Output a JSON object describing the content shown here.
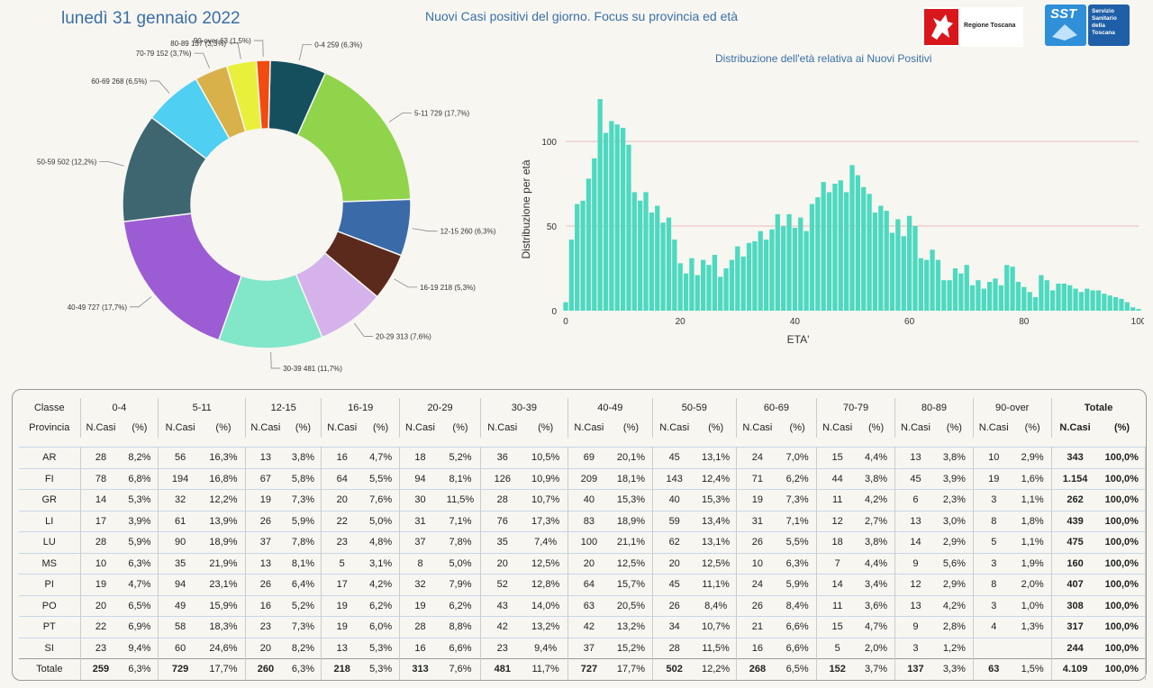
{
  "header": {
    "date": "lunedì 31 gennaio 2022",
    "title": "Nuovi Casi positivi del giorno. Focus su provincia ed età",
    "logo_toscana_label": "Regione Toscana",
    "logo_sst_label": "SST",
    "logo_sst_sub": "Servizio Sanitario della Toscana"
  },
  "chart_data": [
    {
      "type": "pie",
      "donut": true,
      "slices": [
        {
          "label": "0-4 259 (6,3%)",
          "value": 259,
          "color": "#154f5e"
        },
        {
          "label": "5-11 729 (17,7%)",
          "value": 729,
          "color": "#8fd44a"
        },
        {
          "label": "12-15 260 (6,3%)",
          "value": 260,
          "color": "#3a6aa8"
        },
        {
          "label": "16-19 218 (5,3%)",
          "value": 218,
          "color": "#5b2a1d"
        },
        {
          "label": "20-29 313 (7,6%)",
          "value": 313,
          "color": "#d5b3ea"
        },
        {
          "label": "30-39 481 (11,7%)",
          "value": 481,
          "color": "#82e6c9"
        },
        {
          "label": "40-49 727 (17,7%)",
          "value": 727,
          "color": "#9c5cd4"
        },
        {
          "label": "50-59 502 (12,2%)",
          "value": 502,
          "color": "#3e6670"
        },
        {
          "label": "60-69 268 (6,5%)",
          "value": 268,
          "color": "#4fcff2"
        },
        {
          "label": "70-79 152 (3,7%)",
          "value": 152,
          "color": "#d9b14a"
        },
        {
          "label": "80-89 137 (3,3%)",
          "value": 137,
          "color": "#e8f03c"
        },
        {
          "label": "90-over 63 (1,5%)",
          "value": 63,
          "color": "#f24b0f"
        }
      ]
    },
    {
      "type": "bar",
      "title": "Distribuzione dell'età relativa ai Nuovi Positivi",
      "xlabel": "ETA'",
      "ylabel": "Distribuzione per età",
      "xlim": [
        0,
        100
      ],
      "ylim": [
        0,
        125
      ],
      "yticks": [
        0,
        50,
        100
      ],
      "xticks": [
        0,
        20,
        40,
        60,
        80,
        100
      ],
      "color": "#4dd9c0",
      "x": [
        0,
        1,
        2,
        3,
        4,
        5,
        6,
        7,
        8,
        9,
        10,
        11,
        12,
        13,
        14,
        15,
        16,
        17,
        18,
        19,
        20,
        21,
        22,
        23,
        24,
        25,
        26,
        27,
        28,
        29,
        30,
        31,
        32,
        33,
        34,
        35,
        36,
        37,
        38,
        39,
        40,
        41,
        42,
        43,
        44,
        45,
        46,
        47,
        48,
        49,
        50,
        51,
        52,
        53,
        54,
        55,
        56,
        57,
        58,
        59,
        60,
        61,
        62,
        63,
        64,
        65,
        66,
        67,
        68,
        69,
        70,
        71,
        72,
        73,
        74,
        75,
        76,
        77,
        78,
        79,
        80,
        81,
        82,
        83,
        84,
        85,
        86,
        87,
        88,
        89,
        90,
        91,
        92,
        93,
        94,
        95,
        96,
        97,
        98,
        99,
        100
      ],
      "values": [
        5,
        42,
        63,
        65,
        78,
        90,
        125,
        105,
        112,
        110,
        108,
        98,
        70,
        65,
        70,
        58,
        62,
        52,
        55,
        42,
        28,
        22,
        31,
        21,
        30,
        27,
        33,
        20,
        25,
        30,
        38,
        32,
        40,
        41,
        47,
        42,
        48,
        57,
        50,
        57,
        49,
        55,
        47,
        63,
        67,
        76,
        70,
        75,
        77,
        70,
        86,
        80,
        73,
        69,
        58,
        62,
        59,
        46,
        54,
        44,
        56,
        50,
        31,
        30,
        36,
        30,
        18,
        18,
        25,
        22,
        27,
        15,
        18,
        13,
        17,
        19,
        15,
        27,
        26,
        17,
        14,
        11,
        8,
        21,
        18,
        12,
        16,
        16,
        15,
        13,
        11,
        13,
        12,
        12,
        10,
        9,
        8,
        7,
        5,
        2,
        1
      ]
    }
  ],
  "table": {
    "classe_label": "Classe",
    "provincia_label": "Provincia",
    "groups": [
      "0-4",
      "5-11",
      "12-15",
      "16-19",
      "20-29",
      "30-39",
      "40-49",
      "50-59",
      "60-69",
      "70-79",
      "80-89",
      "90-over",
      "Totale"
    ],
    "col_n": "N.Casi",
    "col_p": "(%)",
    "rows": [
      {
        "prov": "AR",
        "cells": [
          "28",
          "8,2%",
          "56",
          "16,3%",
          "13",
          "3,8%",
          "16",
          "4,7%",
          "18",
          "5,2%",
          "36",
          "10,5%",
          "69",
          "20,1%",
          "45",
          "13,1%",
          "24",
          "7,0%",
          "15",
          "4,4%",
          "13",
          "3,8%",
          "10",
          "2,9%",
          "343",
          "100,0%"
        ]
      },
      {
        "prov": "FI",
        "cells": [
          "78",
          "6,8%",
          "194",
          "16,8%",
          "67",
          "5,8%",
          "64",
          "5,5%",
          "94",
          "8,1%",
          "126",
          "10,9%",
          "209",
          "18,1%",
          "143",
          "12,4%",
          "71",
          "6,2%",
          "44",
          "3,8%",
          "45",
          "3,9%",
          "19",
          "1,6%",
          "1.154",
          "100,0%"
        ]
      },
      {
        "prov": "GR",
        "cells": [
          "14",
          "5,3%",
          "32",
          "12,2%",
          "19",
          "7,3%",
          "20",
          "7,6%",
          "30",
          "11,5%",
          "28",
          "10,7%",
          "40",
          "15,3%",
          "40",
          "15,3%",
          "19",
          "7,3%",
          "11",
          "4,2%",
          "6",
          "2,3%",
          "3",
          "1,1%",
          "262",
          "100,0%"
        ]
      },
      {
        "prov": "LI",
        "cells": [
          "17",
          "3,9%",
          "61",
          "13,9%",
          "26",
          "5,9%",
          "22",
          "5,0%",
          "31",
          "7,1%",
          "76",
          "17,3%",
          "83",
          "18,9%",
          "59",
          "13,4%",
          "31",
          "7,1%",
          "12",
          "2,7%",
          "13",
          "3,0%",
          "8",
          "1,8%",
          "439",
          "100,0%"
        ]
      },
      {
        "prov": "LU",
        "cells": [
          "28",
          "5,9%",
          "90",
          "18,9%",
          "37",
          "7,8%",
          "23",
          "4,8%",
          "37",
          "7,8%",
          "35",
          "7,4%",
          "100",
          "21,1%",
          "62",
          "13,1%",
          "26",
          "5,5%",
          "18",
          "3,8%",
          "14",
          "2,9%",
          "5",
          "1,1%",
          "475",
          "100,0%"
        ]
      },
      {
        "prov": "MS",
        "cells": [
          "10",
          "6,3%",
          "35",
          "21,9%",
          "13",
          "8,1%",
          "5",
          "3,1%",
          "8",
          "5,0%",
          "20",
          "12,5%",
          "20",
          "12,5%",
          "20",
          "12,5%",
          "10",
          "6,3%",
          "7",
          "4,4%",
          "9",
          "5,6%",
          "3",
          "1,9%",
          "160",
          "100,0%"
        ]
      },
      {
        "prov": "PI",
        "cells": [
          "19",
          "4,7%",
          "94",
          "23,1%",
          "26",
          "6,4%",
          "17",
          "4,2%",
          "32",
          "7,9%",
          "52",
          "12,8%",
          "64",
          "15,7%",
          "45",
          "11,1%",
          "24",
          "5,9%",
          "14",
          "3,4%",
          "12",
          "2,9%",
          "8",
          "2,0%",
          "407",
          "100,0%"
        ]
      },
      {
        "prov": "PO",
        "cells": [
          "20",
          "6,5%",
          "49",
          "15,9%",
          "16",
          "5,2%",
          "19",
          "6,2%",
          "19",
          "6,2%",
          "43",
          "14,0%",
          "63",
          "20,5%",
          "26",
          "8,4%",
          "26",
          "8,4%",
          "11",
          "3,6%",
          "13",
          "4,2%",
          "3",
          "1,0%",
          "308",
          "100,0%"
        ]
      },
      {
        "prov": "PT",
        "cells": [
          "22",
          "6,9%",
          "58",
          "18,3%",
          "23",
          "7,3%",
          "19",
          "6,0%",
          "28",
          "8,8%",
          "42",
          "13,2%",
          "42",
          "13,2%",
          "34",
          "10,7%",
          "21",
          "6,6%",
          "15",
          "4,7%",
          "9",
          "2,8%",
          "4",
          "1,3%",
          "317",
          "100,0%"
        ]
      },
      {
        "prov": "SI",
        "cells": [
          "23",
          "9,4%",
          "60",
          "24,6%",
          "20",
          "8,2%",
          "13",
          "5,3%",
          "16",
          "6,6%",
          "23",
          "9,4%",
          "37",
          "15,2%",
          "28",
          "11,5%",
          "16",
          "6,6%",
          "5",
          "2,0%",
          "3",
          "1,2%",
          "",
          "",
          "244",
          "100,0%"
        ]
      }
    ],
    "total": {
      "prov": "Totale",
      "cells": [
        "259",
        "6,3%",
        "729",
        "17,7%",
        "260",
        "6,3%",
        "218",
        "5,3%",
        "313",
        "7,6%",
        "481",
        "11,7%",
        "727",
        "17,7%",
        "502",
        "12,2%",
        "268",
        "6,5%",
        "152",
        "3,7%",
        "137",
        "3,3%",
        "63",
        "1,5%",
        "4.109",
        "100,0%"
      ]
    }
  }
}
